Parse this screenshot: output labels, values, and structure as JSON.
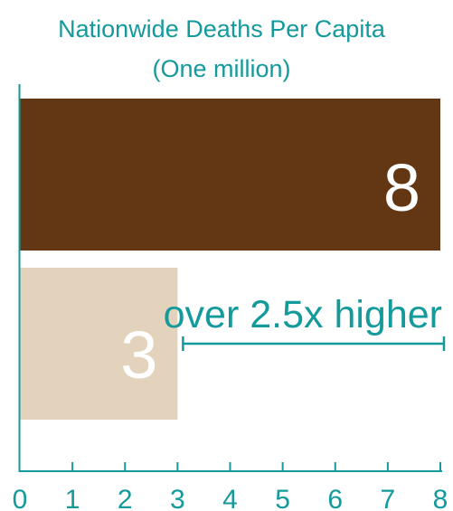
{
  "chart_data": {
    "type": "bar",
    "orientation": "horizontal",
    "title": "Nationwide Deaths Per Capita",
    "subtitle": "(One million)",
    "categories": [
      "",
      ""
    ],
    "values": [
      8,
      3
    ],
    "value_labels": [
      "8",
      "3"
    ],
    "bar_colors": [
      "#633614",
      "#e3d3bd"
    ],
    "xlim": [
      0,
      8
    ],
    "xticks": [
      "0",
      "1",
      "2",
      "3",
      "4",
      "5",
      "6",
      "7",
      "8"
    ],
    "grid": false,
    "legend": "none",
    "annotation": {
      "text": "over 2.5x higher",
      "from": 3,
      "to": 8
    }
  },
  "colors": {
    "accent": "#149a9b",
    "axis": "#149a9b",
    "value_label": "#ffffff"
  }
}
